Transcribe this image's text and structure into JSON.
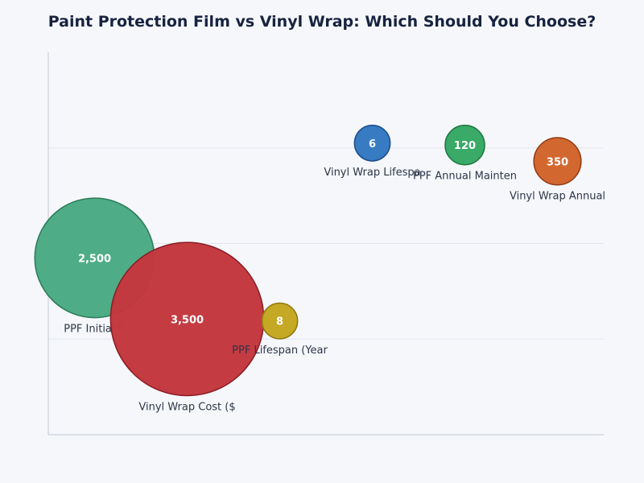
{
  "chart_data": {
    "type": "bubble",
    "title": "Paint Protection Film vs Vinyl Wrap: Which Should You Choose?",
    "xlabel": "",
    "ylabel": "",
    "ylim": [
      0,
      4
    ],
    "grid": true,
    "points": [
      {
        "label": "PPF Initial C",
        "value": 2500,
        "display": "2,500",
        "x": 0,
        "y": 1.85,
        "color": "#4aab84",
        "stroke": "#2a7a58"
      },
      {
        "label": "Vinyl Wrap Cost ($",
        "value": 3500,
        "display": "3,500",
        "x": 1,
        "y": 1.21,
        "color": "#c4373e",
        "stroke": "#8a1c23"
      },
      {
        "label": "PPF Lifespan (Year",
        "value": 8,
        "display": "8",
        "x": 2,
        "y": 1.19,
        "color": "#c4a620",
        "stroke": "#8e7610"
      },
      {
        "label": "Vinyl Wrap Lifespa",
        "value": 6,
        "display": "6",
        "x": 3,
        "y": 3.05,
        "color": "#3378c2",
        "stroke": "#1c4d8a"
      },
      {
        "label": "PPF Annual Mainten",
        "value": 120,
        "display": "120",
        "x": 4,
        "y": 3.03,
        "color": "#35a864",
        "stroke": "#1f7440"
      },
      {
        "label": "Vinyl Wrap Annual",
        "value": 350,
        "display": "350",
        "x": 5,
        "y": 2.86,
        "color": "#d2642c",
        "stroke": "#913a14"
      }
    ]
  }
}
